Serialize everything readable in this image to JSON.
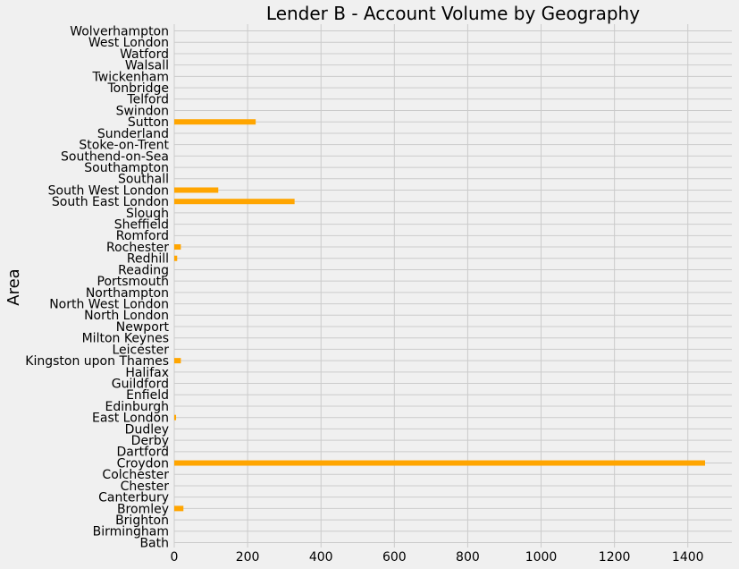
{
  "chart_data": {
    "type": "bar",
    "orientation": "horizontal",
    "title": "Lender B - Account Volume by Geography",
    "xlabel": "",
    "ylabel": "Area",
    "bar_color": "#ffa500",
    "background": "#f0f0f0",
    "grid_color": "#cbcbcb",
    "grid": true,
    "xlim": [
      0,
      1520
    ],
    "xticks": [
      0,
      200,
      400,
      600,
      800,
      1000,
      1200,
      1400
    ],
    "categories": [
      "Bath",
      "Birmingham",
      "Brighton",
      "Bromley",
      "Canterbury",
      "Chester",
      "Colchester",
      "Croydon",
      "Dartford",
      "Derby",
      "Dudley",
      "East London",
      "Edinburgh",
      "Enfield",
      "Guildford",
      "Halifax",
      "Kingston upon Thames",
      "Leicester",
      "Milton Keynes",
      "Newport",
      "North London",
      "North West London",
      "Northampton",
      "Portsmouth",
      "Reading",
      "Redhill",
      "Rochester",
      "Romford",
      "Sheffield",
      "Slough",
      "South East London",
      "South West London",
      "Southall",
      "Southampton",
      "Southend-on-Sea",
      "Stoke-on-Trent",
      "Sunderland",
      "Sutton",
      "Swindon",
      "Telford",
      "Tonbridge",
      "Twickenham",
      "Walsall",
      "Watford",
      "West London",
      "Wolverhampton"
    ],
    "values": [
      0,
      0,
      0,
      25,
      0,
      0,
      0,
      1447,
      0,
      0,
      0,
      5,
      0,
      0,
      0,
      0,
      18,
      0,
      0,
      0,
      0,
      0,
      0,
      0,
      0,
      8,
      18,
      0,
      0,
      0,
      328,
      120,
      0,
      0,
      0,
      0,
      0,
      222,
      0,
      0,
      0,
      0,
      0,
      0,
      0,
      0
    ]
  }
}
